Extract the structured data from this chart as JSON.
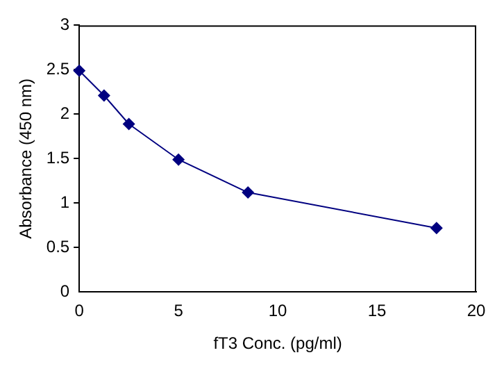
{
  "chart_data": {
    "type": "line",
    "xlabel": "fT3 Conc. (pg/ml)",
    "ylabel": "Absorbance (450 nm)",
    "x": [
      0,
      1.25,
      2.5,
      5,
      8.5,
      18
    ],
    "series": [
      {
        "color": "#000080",
        "values": [
          2.49,
          2.21,
          1.89,
          1.49,
          1.12,
          0.72
        ]
      }
    ],
    "xlim": [
      0,
      20
    ],
    "xticks": [
      0,
      5,
      10,
      15,
      20
    ],
    "ylim": [
      0,
      3
    ],
    "yticks": [
      0,
      0.5,
      1,
      1.5,
      2,
      2.5,
      3
    ],
    "grid": false,
    "legend": false,
    "marker": "diamond",
    "line_style": "solid"
  }
}
